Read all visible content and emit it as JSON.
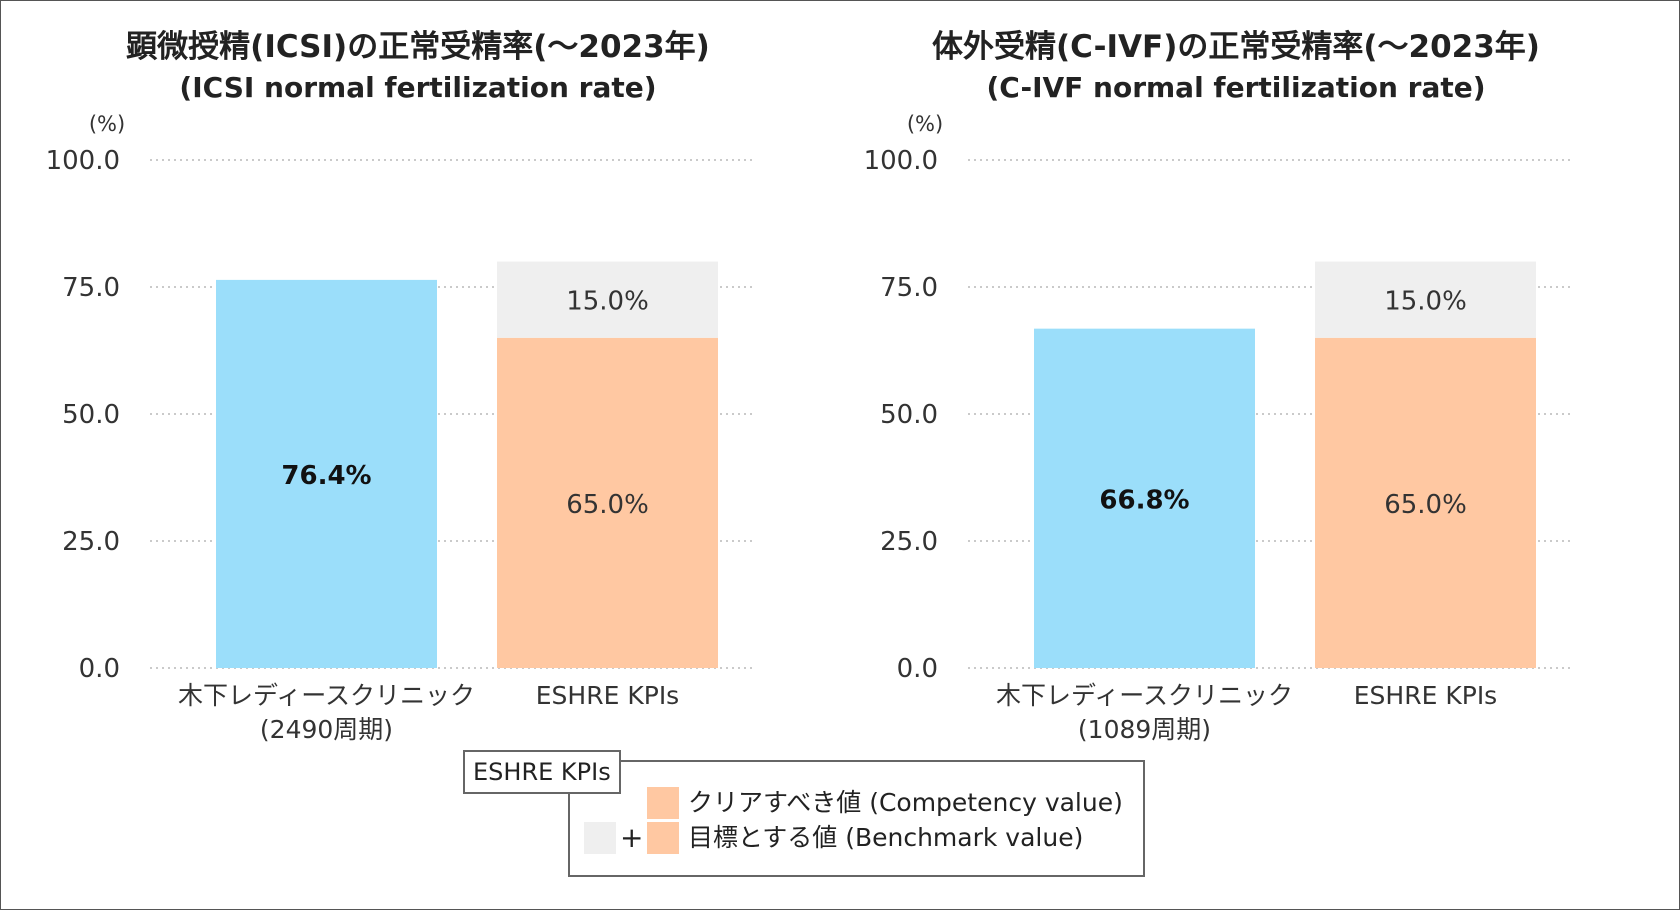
{
  "colors": {
    "clinic": "#9bdefa",
    "competency": "#ffc8a2",
    "benchmark": "#efefef",
    "grid": "#b8b8b8"
  },
  "y_unit": "(%)",
  "chart_data": [
    {
      "type": "bar",
      "stacked": true,
      "title": "顕微授精(ICSI)の正常受精率(〜2023年)",
      "subtitle": "(ICSI normal fertilization rate)",
      "ylabel": "(%)",
      "ylim": [
        0,
        100
      ],
      "yticks": [
        "0.0",
        "25.0",
        "50.0",
        "75.0",
        "100.0"
      ],
      "grid": true,
      "categories": [
        [
          "木下レディースクリニック",
          "(2490周期)"
        ],
        [
          "ESHRE KPIs"
        ]
      ],
      "series": [
        {
          "key": "clinic",
          "values": [
            76.4,
            0
          ],
          "labels": [
            "76.4%",
            ""
          ]
        },
        {
          "key": "competency",
          "values": [
            0,
            65.0
          ],
          "labels": [
            "",
            "65.0%"
          ]
        },
        {
          "key": "benchmark",
          "values": [
            0,
            15.0
          ],
          "labels": [
            "",
            "15.0%"
          ]
        }
      ]
    },
    {
      "type": "bar",
      "stacked": true,
      "title": "体外受精(C-IVF)の正常受精率(〜2023年)",
      "subtitle": "(C-IVF normal fertilization rate)",
      "ylabel": "(%)",
      "ylim": [
        0,
        100
      ],
      "yticks": [
        "0.0",
        "25.0",
        "50.0",
        "75.0",
        "100.0"
      ],
      "grid": true,
      "categories": [
        [
          "木下レディースクリニック",
          "(1089周期)"
        ],
        [
          "ESHRE KPIs"
        ]
      ],
      "series": [
        {
          "key": "clinic",
          "values": [
            66.8,
            0
          ],
          "labels": [
            "66.8%",
            ""
          ]
        },
        {
          "key": "competency",
          "values": [
            0,
            65.0
          ],
          "labels": [
            "",
            "65.0%"
          ]
        },
        {
          "key": "benchmark",
          "values": [
            0,
            15.0
          ],
          "labels": [
            "",
            "15.0%"
          ]
        }
      ]
    }
  ],
  "legend": {
    "title": "ESHRE KPIs",
    "competency_label": "クリアすべき値 (Competency value)",
    "benchmark_label": "目標とする値 (Benchmark value)",
    "plus": "+"
  }
}
